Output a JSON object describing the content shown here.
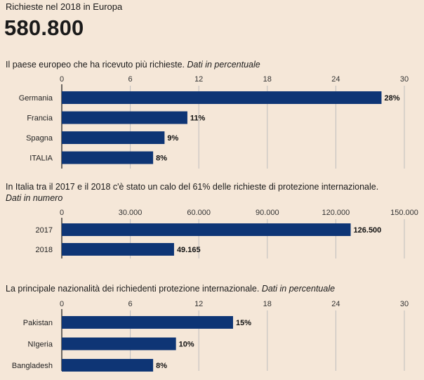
{
  "header": {
    "eyebrow": "Richieste nel 2018 in Europa",
    "total": "580.800"
  },
  "sections": [
    {
      "title_main": "Il paese europeo che ha ricevuto più richieste. ",
      "title_italic": "Dati in percentuale"
    },
    {
      "title_main": "In Italia tra il 2017 e il 2018  c'è stato un calo del 61% delle richieste di protezione internazionale.",
      "title_italic": "Dati in numero"
    },
    {
      "title_main": "La principale nazionalità dei richiedenti protezione internazionale. ",
      "title_italic": "Dati in percentuale"
    }
  ],
  "colors": {
    "bar": "#0e3575",
    "grid": "#bdbdbd",
    "axis": "#222222",
    "background": "#f5e7d8"
  },
  "chart_data": [
    {
      "type": "bar",
      "orientation": "horizontal",
      "categories": [
        "Germania",
        "Francia",
        "Spagna",
        "ITALIA"
      ],
      "values": [
        28,
        11,
        9,
        8
      ],
      "labels": [
        "28%",
        "11%",
        "9%",
        "8%"
      ],
      "xlim": [
        0,
        30
      ],
      "ticks": [
        0,
        6,
        12,
        18,
        24,
        30
      ],
      "tick_labels": [
        "0",
        "6",
        "12",
        "18",
        "24",
        "30"
      ],
      "grid": true
    },
    {
      "type": "bar",
      "orientation": "horizontal",
      "categories": [
        "2017",
        "2018"
      ],
      "values": [
        126500,
        49165
      ],
      "labels": [
        "126.500",
        "49.165"
      ],
      "xlim": [
        0,
        150000
      ],
      "ticks": [
        0,
        30000,
        60000,
        90000,
        120000,
        150000
      ],
      "tick_labels": [
        "0",
        "30.000",
        "60.000",
        "90.000",
        "120.000",
        "150.000"
      ],
      "grid": true
    },
    {
      "type": "bar",
      "orientation": "horizontal",
      "categories": [
        "Pakistan",
        "NIgeria",
        "Bangladesh"
      ],
      "values": [
        15,
        10,
        8
      ],
      "labels": [
        "15%",
        "10%",
        "8%"
      ],
      "xlim": [
        0,
        30
      ],
      "ticks": [
        0,
        6,
        12,
        18,
        24,
        30
      ],
      "tick_labels": [
        "0",
        "6",
        "12",
        "18",
        "24",
        "30"
      ],
      "grid": true
    }
  ]
}
